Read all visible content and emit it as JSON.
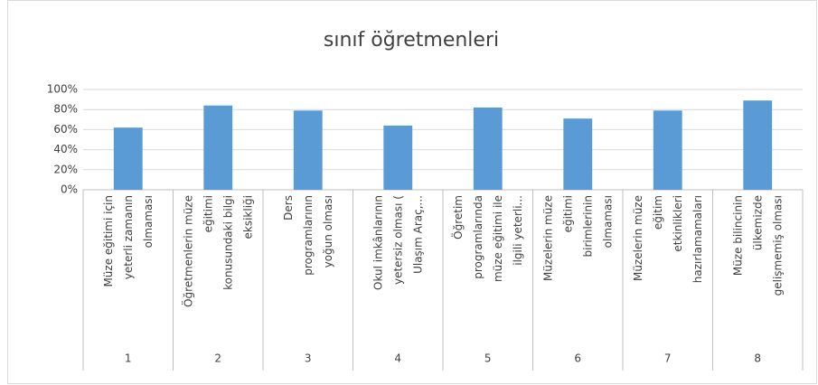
{
  "chart_data": {
    "type": "bar",
    "title": "sınıf öğretmenleri",
    "categories": [
      "1",
      "2",
      "3",
      "4",
      "5",
      "6",
      "7",
      "8"
    ],
    "category_labels": [
      "Müze eğitimi için yeterli zamanın olmaması",
      "Öğretmenlerin müze eğitimi konusundaki bilgi eksikliği",
      "Ders programlarının yoğun olması",
      "Okul imkânlarının yetersiz olması ( Ulaşım Araç,...",
      "Öğretim programlarında müze eğitimi ile ilgili yeterli...",
      "Müzelerin müze eğitimi birimlerinin olmaması",
      "Müzelerin müze eğitim etkinlikleri hazırlamamaları",
      "Müze bilincinin ülkemizde gelişmemiş olması"
    ],
    "values": [
      62,
      84,
      79,
      64,
      82,
      71,
      79,
      89
    ],
    "color": "#5b9bd5",
    "ylim": [
      0,
      100
    ],
    "yticks": [
      {
        "value": 0,
        "label": "0%"
      },
      {
        "value": 20,
        "label": "20%"
      },
      {
        "value": 40,
        "label": "40%"
      },
      {
        "value": 60,
        "label": "60%"
      },
      {
        "value": 80,
        "label": "80%"
      },
      {
        "value": 100,
        "label": "100%"
      }
    ],
    "grid": true
  }
}
